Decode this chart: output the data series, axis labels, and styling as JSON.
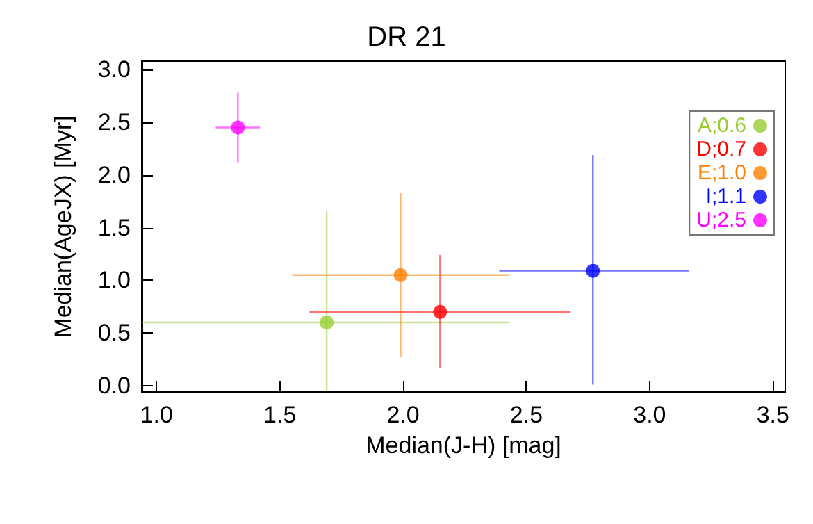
{
  "chart_data": {
    "type": "scatter",
    "title": "DR 21",
    "xlabel": "Median(J-H) [mag]",
    "ylabel": "Median(AgeJX) [Myr]",
    "xlim": [
      0.94,
      3.55
    ],
    "xticks": [
      {
        "value": 1,
        "label": "1.0"
      },
      {
        "value": 1.5,
        "label": "1.5"
      },
      {
        "value": 2,
        "label": "2.0"
      },
      {
        "value": 2.5,
        "label": "2.5"
      },
      {
        "value": 3,
        "label": "3.0"
      },
      {
        "value": 3.5,
        "label": "3.5"
      }
    ],
    "ylim": [
      -0.06,
      3.08
    ],
    "yticks": [
      {
        "value": 0,
        "label": "0.0"
      },
      {
        "value": 0.5,
        "label": "0.5"
      },
      {
        "value": 1,
        "label": "1.0"
      },
      {
        "value": 1.5,
        "label": "1.5"
      },
      {
        "value": 2,
        "label": "2.0"
      },
      {
        "value": 2.5,
        "label": "2.5"
      },
      {
        "value": 3,
        "label": "3.0"
      }
    ],
    "grid": false,
    "legend": "top right",
    "marker": "circle",
    "series": [
      {
        "name": "A;0.6",
        "color": "#99cc33",
        "x": [
          1.69
        ],
        "values": [
          0.6
        ],
        "errors": [
          [
            -0.05,
            1.66
          ]
        ],
        "xerrors": [
          [
            0.94,
            2.43
          ]
        ]
      },
      {
        "name": "D;0.7",
        "color": "#ff0000",
        "x": [
          2.15
        ],
        "values": [
          0.7
        ],
        "errors": [
          [
            0.17,
            1.24
          ]
        ],
        "xerrors": [
          [
            1.62,
            2.68
          ]
        ]
      },
      {
        "name": "E;1.0",
        "color": "#ff8000",
        "x": [
          1.99
        ],
        "values": [
          1.05
        ],
        "errors": [
          [
            0.27,
            1.83
          ]
        ],
        "xerrors": [
          [
            1.55,
            2.43
          ]
        ]
      },
      {
        "name": "I;1.1",
        "color": "#0000ff",
        "x": [
          2.77
        ],
        "values": [
          1.09
        ],
        "errors": [
          [
            0.01,
            2.19
          ]
        ],
        "xerrors": [
          [
            2.39,
            3.16
          ]
        ]
      },
      {
        "name": "U;2.5",
        "color": "#ff00ff",
        "x": [
          1.33
        ],
        "values": [
          2.45
        ],
        "errors": [
          [
            2.12,
            2.78
          ]
        ],
        "xerrors": [
          [
            1.24,
            1.42
          ]
        ]
      }
    ]
  }
}
